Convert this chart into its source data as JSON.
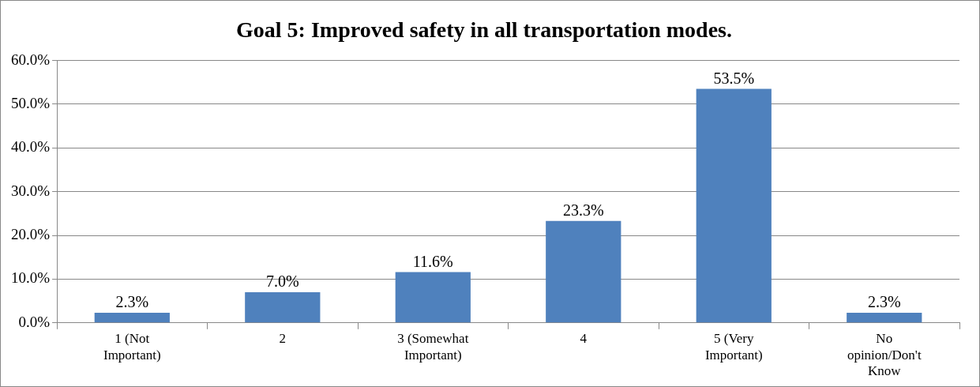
{
  "chart_data": {
    "type": "bar",
    "title": "Goal 5: Improved safety in all transportation modes.",
    "categories": [
      "1 (Not Important)",
      "2",
      "3 (Somewhat Important)",
      "4",
      "5 (Very Important)",
      "No opinion/Don't Know"
    ],
    "values": [
      2.3,
      7.0,
      11.6,
      23.3,
      53.5,
      2.3
    ],
    "value_labels": [
      "2.3%",
      "7.0%",
      "11.6%",
      "23.3%",
      "53.5%",
      "2.3%"
    ],
    "color": "#4f81bd",
    "ylim": [
      0,
      60
    ],
    "yticks": [
      {
        "value": 0,
        "label": "0.0%"
      },
      {
        "value": 10,
        "label": "10.0%"
      },
      {
        "value": 20,
        "label": "20.0%"
      },
      {
        "value": 30,
        "label": "30.0%"
      },
      {
        "value": 40,
        "label": "40.0%"
      },
      {
        "value": 50,
        "label": "50.0%"
      },
      {
        "value": 60,
        "label": "60.0%"
      }
    ],
    "grid": "y",
    "legend": false
  }
}
